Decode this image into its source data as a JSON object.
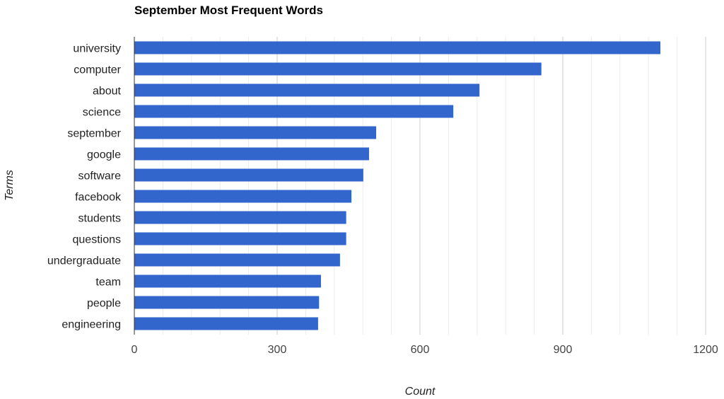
{
  "chart_data": {
    "type": "bar",
    "orientation": "horizontal",
    "title": "September Most Frequent Words",
    "xlabel": "Count",
    "ylabel": "Terms",
    "categories": [
      "university",
      "computer",
      "about",
      "science",
      "september",
      "google",
      "software",
      "facebook",
      "students",
      "questions",
      "undergraduate",
      "team",
      "people",
      "engineering"
    ],
    "values": [
      1105,
      855,
      725,
      670,
      508,
      493,
      481,
      456,
      445,
      445,
      432,
      392,
      388,
      386
    ],
    "xlim": [
      0,
      1200
    ],
    "ticks": [
      0,
      300,
      600,
      900,
      1200
    ],
    "tick_labels": [
      "0",
      "300",
      "600",
      "900",
      "1200"
    ],
    "grid": true,
    "legend": "none",
    "bar_color": "#3366cc"
  }
}
